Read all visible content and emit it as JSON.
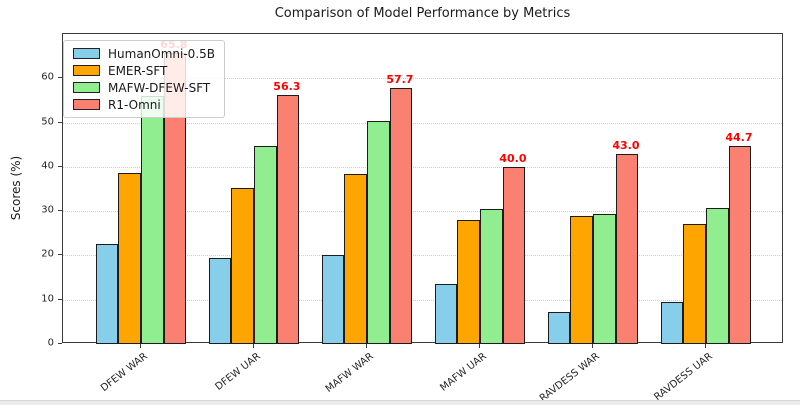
{
  "chart_data": {
    "type": "bar",
    "title": "Comparison of Model Performance by Metrics",
    "xlabel": "",
    "ylabel": "Scores (%)",
    "categories": [
      "DFEW WAR",
      "DFEW UAR",
      "MAFW WAR",
      "MAFW UAR",
      "RAVDESS WAR",
      "RAVDESS UAR"
    ],
    "series": [
      {
        "name": "HumanOmni-0.5B",
        "color": "#87CEEB",
        "values": [
          22.6,
          19.4,
          20.2,
          13.5,
          7.3,
          9.4
        ]
      },
      {
        "name": "EMER-SFT",
        "color": "#FFA500",
        "values": [
          38.6,
          35.3,
          38.4,
          28.0,
          29.0,
          27.2
        ]
      },
      {
        "name": "MAFW-DFEW-SFT",
        "color": "#90EE90",
        "values": [
          56.1,
          44.6,
          50.4,
          30.4,
          29.3,
          30.8
        ]
      },
      {
        "name": "R1-Omni",
        "color": "#FA8072",
        "values": [
          65.8,
          56.3,
          57.7,
          40.0,
          43.0,
          44.7
        ],
        "value_labels": [
          "65.8",
          "56.3",
          "57.7",
          "40.0",
          "43.0",
          "44.7"
        ],
        "label_color": "#ff0000"
      }
    ],
    "yticks": [
      0,
      10,
      20,
      30,
      40,
      50,
      60
    ],
    "ylim": [
      0,
      70
    ],
    "grid": "horizontal-dotted",
    "legend_position": "upper-left",
    "bar_edge_color": "#1c1c1c"
  }
}
